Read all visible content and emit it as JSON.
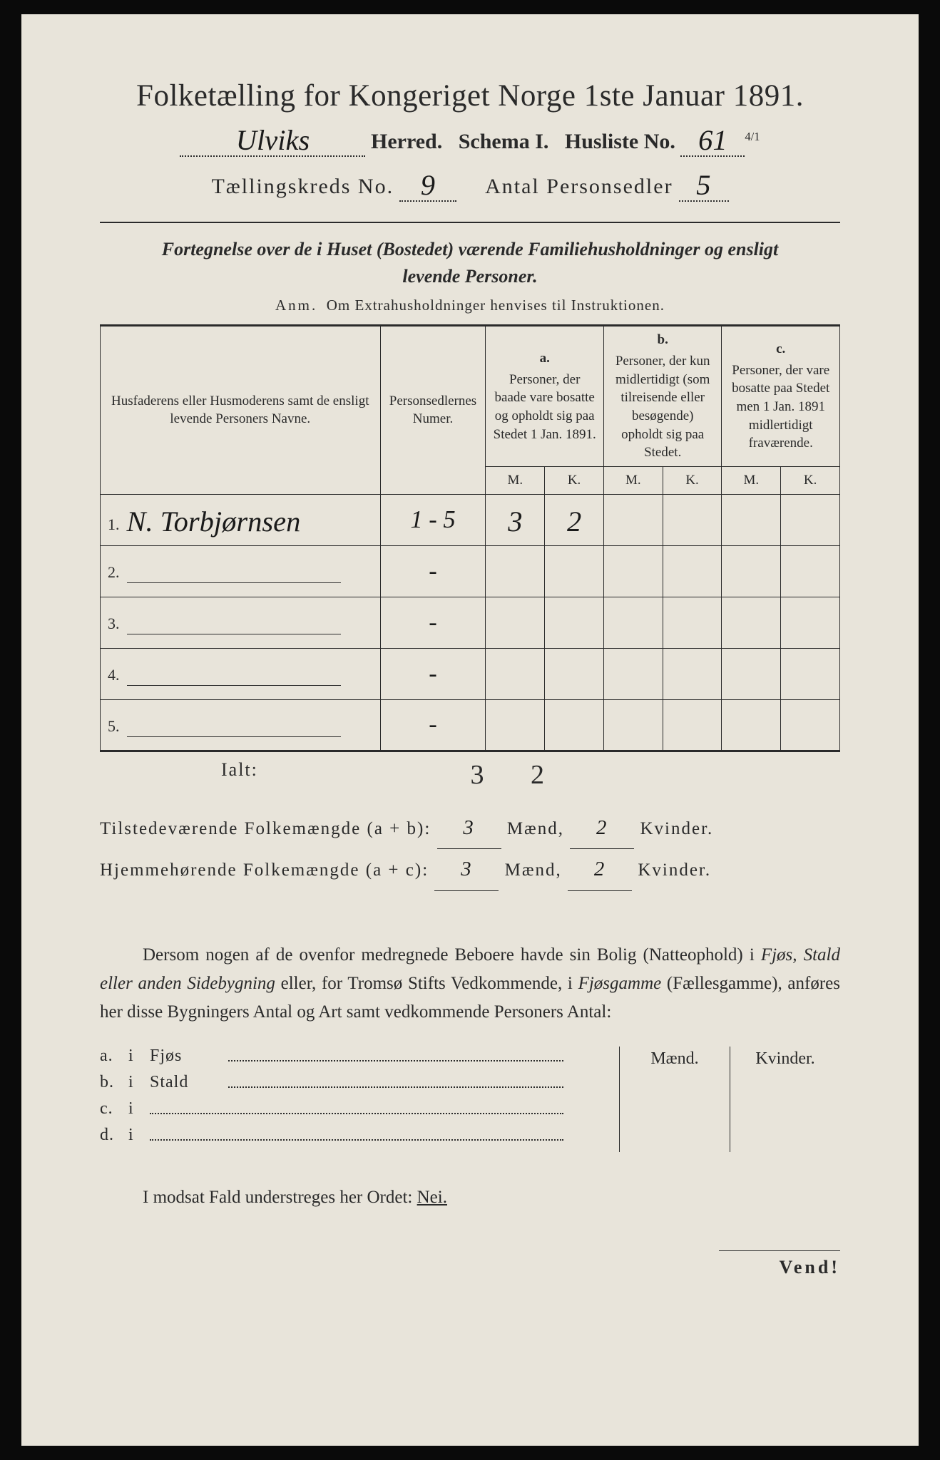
{
  "background_color": "#0a0a0a",
  "paper_color": "#e8e4da",
  "ink_color": "#2a2a2a",
  "header": {
    "title": "Folketælling for Kongeriget Norge 1ste Januar 1891.",
    "herred_handwritten": "Ulviks",
    "herred_label_after": "Herred.",
    "schema_label": "Schema I.",
    "husliste_label": "Husliste No.",
    "husliste_no": "61",
    "husliste_fraction": "4/1",
    "kreds_label": "Tællingskreds No.",
    "kreds_no": "9",
    "personsedler_label": "Antal Personsedler",
    "personsedler_no": "5"
  },
  "subtitle": {
    "line1_italic_lead": "Fortegnelse over de i Huset (Bostedet) værende Familiehusholdninger og ensligt",
    "line2_italic": "levende Personer.",
    "anm_label": "Anm.",
    "anm_text": "Om Extrahusholdninger henvises til Instruktionen."
  },
  "table": {
    "col_name_header": "Husfaderens eller Husmoderens samt de ensligt levende Personers Navne.",
    "col_num_header": "Personsedlernes Numer.",
    "col_a_letter": "a.",
    "col_a_text": "Personer, der baade vare bosatte og opholdt sig paa Stedet 1 Jan. 1891.",
    "col_b_letter": "b.",
    "col_b_text": "Personer, der kun midlertidigt (som tilreisende eller besøgende) opholdt sig paa Stedet.",
    "col_c_letter": "c.",
    "col_c_text": "Personer, der vare bosatte paa Stedet men 1 Jan. 1891 midlertidigt fraværende.",
    "mk_m": "M.",
    "mk_k": "K.",
    "rows": [
      {
        "n": "1.",
        "name_hand": "N. Torbjørnsen",
        "num": "1 - 5",
        "a_m": "3",
        "a_k": "2",
        "b_m": "",
        "b_k": "",
        "c_m": "",
        "c_k": ""
      },
      {
        "n": "2.",
        "name_hand": "",
        "num": "-",
        "a_m": "",
        "a_k": "",
        "b_m": "",
        "b_k": "",
        "c_m": "",
        "c_k": ""
      },
      {
        "n": "3.",
        "name_hand": "",
        "num": "-",
        "a_m": "",
        "a_k": "",
        "b_m": "",
        "b_k": "",
        "c_m": "",
        "c_k": ""
      },
      {
        "n": "4.",
        "name_hand": "",
        "num": "-",
        "a_m": "",
        "a_k": "",
        "b_m": "",
        "b_k": "",
        "c_m": "",
        "c_k": ""
      },
      {
        "n": "5.",
        "name_hand": "",
        "num": "-",
        "a_m": "",
        "a_k": "",
        "b_m": "",
        "b_k": "",
        "c_m": "",
        "c_k": ""
      }
    ],
    "ialt_label": "Ialt:",
    "ialt_a_m": "3",
    "ialt_a_k": "2"
  },
  "summary": {
    "row1_label": "Tilstedeværende Folkemængde (a + b):",
    "row1_m": "3",
    "row1_m_suffix": "Mænd,",
    "row1_k": "2",
    "row1_k_suffix": "Kvinder.",
    "row2_label": "Hjemmehørende Folkemængde (a + c):",
    "row2_m": "3",
    "row2_m_suffix": "Mænd,",
    "row2_k": "2",
    "row2_k_suffix": "Kvinder."
  },
  "paragraph": {
    "text_before": "Dersom nogen af de ovenfor medregnede Beboere havde sin Bolig (Natteophold) i ",
    "italic1": "Fjøs, Stald eller anden Sidebygning",
    "text_mid1": " eller, for Tromsø Stifts Vedkommende, i ",
    "italic2": "Fjøsgamme",
    "text_mid2": " (Fællesgamme), anføres her disse Bygningers Antal og Art samt vedkommende Personers Antal:"
  },
  "mk_block": {
    "header_m": "Mænd.",
    "header_k": "Kvinder.",
    "rows": [
      {
        "label": "a.",
        "i": "i",
        "word": "Fjøs",
        "dotted": true
      },
      {
        "label": "b.",
        "i": "i",
        "word": "Stald",
        "dotted": true
      },
      {
        "label": "c.",
        "i": "i",
        "word": "",
        "dotted_long": true
      },
      {
        "label": "d.",
        "i": "i",
        "word": "",
        "dotted_long": true
      }
    ]
  },
  "nei_line": {
    "text_before": "I modsat Fald understreges her Ordet: ",
    "nei": "Nei."
  },
  "footer": {
    "vend": "Vend!"
  }
}
